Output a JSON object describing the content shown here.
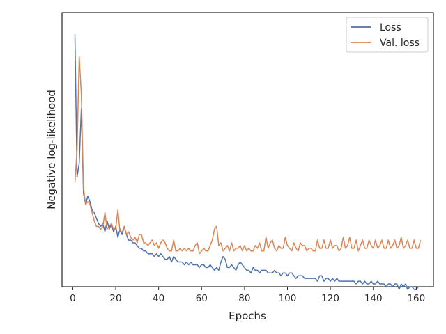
{
  "chart_data": {
    "type": "line",
    "title": "",
    "xlabel": "Epochs",
    "ylabel": "Negative log-likelihood",
    "xlim": [
      -5,
      168
    ],
    "ylim": [
      0,
      100
    ],
    "y_tick_labels_shown": false,
    "x_ticks": [
      0,
      20,
      40,
      60,
      80,
      100,
      120,
      140,
      160
    ],
    "x_tick_labels": [
      "0",
      "20",
      "40",
      "60",
      "80",
      "100",
      "120",
      "140",
      "160"
    ],
    "grid": false,
    "legend_position": "upper right",
    "series": [
      {
        "name": "Loss",
        "color": "#4c72b0",
        "x": [
          1,
          2,
          3,
          4,
          5,
          6,
          7,
          8,
          9,
          10,
          11,
          12,
          13,
          14,
          15,
          16,
          17,
          18,
          19,
          20,
          21,
          22,
          23,
          24,
          25,
          26,
          27,
          28,
          29,
          30,
          31,
          32,
          33,
          34,
          35,
          36,
          37,
          38,
          39,
          40,
          41,
          42,
          43,
          44,
          45,
          46,
          47,
          48,
          49,
          50,
          51,
          52,
          53,
          54,
          55,
          56,
          57,
          58,
          59,
          60,
          61,
          62,
          63,
          64,
          65,
          66,
          67,
          68,
          69,
          70,
          71,
          72,
          73,
          74,
          75,
          76,
          77,
          78,
          79,
          80,
          81,
          82,
          83,
          84,
          85,
          86,
          87,
          88,
          89,
          90,
          91,
          92,
          93,
          94,
          95,
          96,
          97,
          98,
          99,
          100,
          101,
          102,
          103,
          104,
          105,
          106,
          107,
          108,
          109,
          110,
          111,
          112,
          113,
          114,
          115,
          116,
          117,
          118,
          119,
          120,
          121,
          122,
          123,
          124,
          125,
          126,
          127,
          128,
          129,
          130,
          131,
          132,
          133,
          134,
          135,
          136,
          137,
          138,
          139,
          140,
          141,
          142,
          143,
          144,
          145,
          146,
          147,
          148,
          149,
          150,
          151,
          152,
          153,
          154,
          155,
          156,
          157,
          158,
          159,
          160,
          161,
          162
        ],
        "y": [
          92,
          40,
          45,
          65,
          34,
          30,
          33,
          31,
          28,
          27,
          25,
          23,
          22,
          23,
          20,
          24,
          21,
          23,
          20,
          22,
          18,
          21,
          19,
          22,
          19,
          17,
          17,
          16,
          16,
          15,
          14,
          14,
          13,
          13,
          12,
          12,
          12,
          11,
          12,
          11,
          12,
          11,
          10,
          10,
          11,
          9,
          11,
          10,
          9,
          9,
          9,
          8,
          9,
          8,
          9,
          8,
          8,
          8,
          7,
          8,
          8,
          7,
          7,
          8,
          7,
          6,
          7,
          6,
          9,
          11,
          10,
          7,
          7,
          8,
          7,
          6,
          8,
          9,
          8,
          7,
          6,
          6,
          5,
          7,
          6,
          6,
          5,
          6,
          6,
          6,
          5,
          5,
          5,
          6,
          5,
          5,
          4,
          5,
          5,
          4,
          5,
          5,
          4,
          3,
          4,
          4,
          4,
          3,
          3,
          3,
          3,
          3,
          3,
          2,
          4,
          4,
          2,
          3,
          3,
          2,
          3,
          2,
          3,
          2,
          2,
          2,
          2,
          2,
          2,
          2,
          2,
          1,
          2,
          2,
          1,
          2,
          1,
          1,
          2,
          1,
          1,
          2,
          1,
          1,
          1,
          0,
          1,
          1,
          0,
          1,
          1,
          -1,
          1,
          0,
          1,
          -1,
          0,
          0,
          -1,
          -1,
          0,
          0
        ]
      },
      {
        "name": "Val. loss",
        "color": "#dd8452",
        "x": [
          1,
          2,
          3,
          4,
          5,
          6,
          7,
          8,
          9,
          10,
          11,
          12,
          13,
          14,
          15,
          16,
          17,
          18,
          19,
          20,
          21,
          22,
          23,
          24,
          25,
          26,
          27,
          28,
          29,
          30,
          31,
          32,
          33,
          34,
          35,
          36,
          37,
          38,
          39,
          40,
          41,
          42,
          43,
          44,
          45,
          46,
          47,
          48,
          49,
          50,
          51,
          52,
          53,
          54,
          55,
          56,
          57,
          58,
          59,
          60,
          61,
          62,
          63,
          64,
          65,
          66,
          67,
          68,
          69,
          70,
          71,
          72,
          73,
          74,
          75,
          76,
          77,
          78,
          79,
          80,
          81,
          82,
          83,
          84,
          85,
          86,
          87,
          88,
          89,
          90,
          91,
          92,
          93,
          94,
          95,
          96,
          97,
          98,
          99,
          100,
          101,
          102,
          103,
          104,
          105,
          106,
          107,
          108,
          109,
          110,
          111,
          112,
          113,
          114,
          115,
          116,
          117,
          118,
          119,
          120,
          121,
          122,
          123,
          124,
          125,
          126,
          127,
          128,
          129,
          130,
          131,
          132,
          133,
          134,
          135,
          136,
          137,
          138,
          139,
          140,
          141,
          142,
          143,
          144,
          145,
          146,
          147,
          148,
          149,
          150,
          151,
          152,
          153,
          154,
          155,
          156,
          157,
          158,
          159,
          160,
          161,
          162
        ],
        "y": [
          38,
          50,
          84,
          70,
          36,
          30,
          31,
          30,
          27,
          24,
          22,
          22,
          21,
          22,
          27,
          21,
          22,
          23,
          21,
          21,
          28,
          20,
          20,
          22,
          19,
          20,
          18,
          17,
          18,
          16,
          19,
          19,
          16,
          16,
          15,
          16,
          17,
          15,
          16,
          14,
          16,
          17,
          16,
          14,
          13,
          13,
          17,
          13,
          13,
          14,
          13,
          14,
          13,
          14,
          13,
          13,
          15,
          16,
          12,
          13,
          14,
          13,
          13,
          15,
          17,
          21,
          22,
          15,
          16,
          13,
          14,
          15,
          13,
          16,
          13,
          14,
          14,
          15,
          13,
          15,
          13,
          14,
          13,
          13,
          15,
          14,
          16,
          13,
          13,
          18,
          14,
          16,
          17,
          14,
          13,
          15,
          14,
          14,
          18,
          15,
          14,
          13,
          16,
          14,
          13,
          16,
          15,
          15,
          13,
          14,
          14,
          13,
          13,
          17,
          14,
          14,
          17,
          14,
          14,
          17,
          14,
          15,
          15,
          13,
          14,
          18,
          14,
          15,
          18,
          14,
          14,
          17,
          13,
          15,
          17,
          14,
          14,
          17,
          15,
          14,
          17,
          14,
          15,
          17,
          14,
          14,
          17,
          14,
          15,
          17,
          14,
          15,
          18,
          14,
          15,
          17,
          14,
          14,
          17,
          14,
          14,
          17
        ]
      }
    ]
  }
}
